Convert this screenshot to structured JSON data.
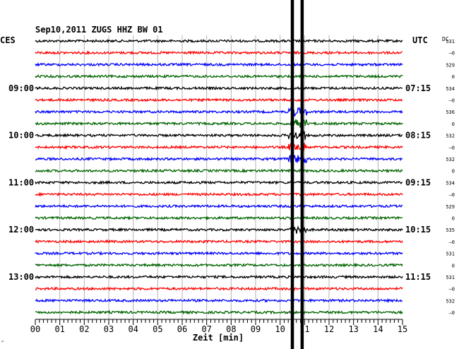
{
  "header": {
    "title": "Sep10,2011   ZUGS HHZ BW 01",
    "left_tz": "CES",
    "right_tz": "UTC",
    "dc_label": "DC"
  },
  "chart_data": {
    "type": "line",
    "title": "Sep10,2011   ZUGS HHZ BW 01",
    "xlabel": "Zeit [min]",
    "xlim": [
      0,
      15
    ],
    "x_ticks": [
      "00",
      "01",
      "02",
      "03",
      "04",
      "05",
      "06",
      "07",
      "08",
      "09",
      "10",
      "11",
      "12",
      "13",
      "14",
      "15"
    ],
    "trace_count": 24,
    "trace_colors": [
      "#000000",
      "#ff0000",
      "#0000ff",
      "#006400"
    ],
    "left_hour_labels": [
      {
        "trace": 4,
        "text": "09:00"
      },
      {
        "trace": 8,
        "text": "10:00"
      },
      {
        "trace": 12,
        "text": "11:00"
      },
      {
        "trace": 16,
        "text": "12:00"
      },
      {
        "trace": 20,
        "text": "13:00"
      }
    ],
    "right_hour_labels": [
      {
        "trace": 4,
        "text": "07:15"
      },
      {
        "trace": 8,
        "text": "08:15"
      },
      {
        "trace": 12,
        "text": "09:15"
      },
      {
        "trace": 16,
        "text": "10:15"
      },
      {
        "trace": 20,
        "text": "11:15"
      }
    ],
    "dc_values": [
      "531",
      "–0",
      "529",
      "0",
      "534",
      "–0",
      "536",
      "0",
      "532",
      "–0",
      "532",
      "0",
      "534",
      "–0",
      "529",
      "0",
      "535",
      "–0",
      "531",
      "0",
      "531",
      "–0",
      "532",
      "–0"
    ],
    "event_markers_min": [
      10.5,
      10.9
    ],
    "quake_window_min": [
      10.35,
      11.1
    ],
    "quake_traces": [
      6,
      7,
      8,
      9,
      10,
      16
    ]
  },
  "footer": {
    "corner_mark": "″"
  }
}
